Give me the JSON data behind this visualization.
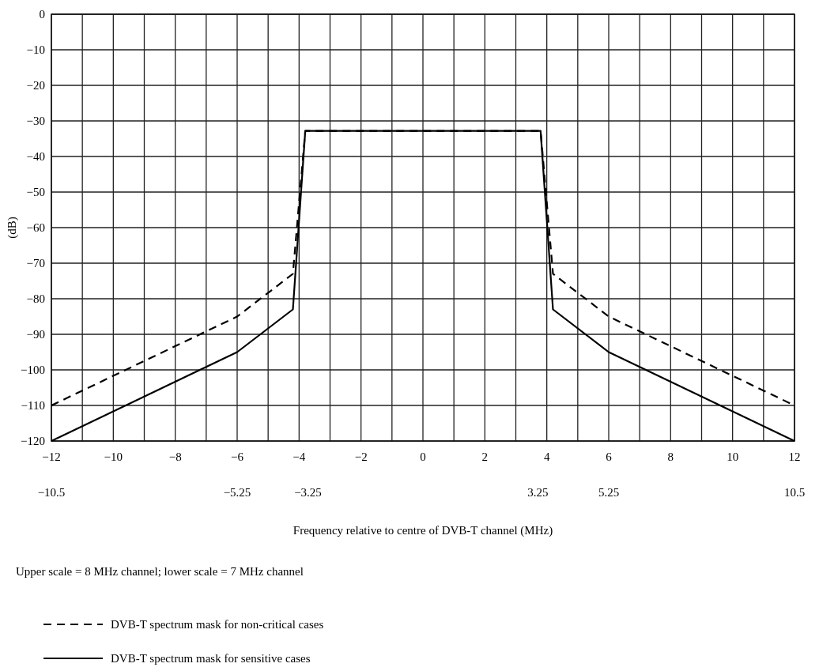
{
  "chart_data": {
    "type": "line",
    "xlabel": "Frequency relative to centre of DVB-T channel (MHz)",
    "ylabel": "(dB)",
    "annotations": [
      "Upper scale = 8 MHz channel; lower scale = 7 MHz channel"
    ],
    "series": [
      {
        "name": "DVB-T spectrum mask for non-critical cases",
        "color": "#000000",
        "line_style": "dashed",
        "x": [
          -12,
          -6,
          -4.2,
          -3.8,
          3.8,
          4.2,
          6,
          12
        ],
        "values": [
          -110,
          -85,
          -73,
          -32.8,
          -32.8,
          -73,
          -85,
          -110
        ]
      },
      {
        "name": "DVB-T spectrum mask for sensitive cases",
        "color": "#000000",
        "line_style": "solid",
        "x": [
          -12,
          -6,
          -4.2,
          -3.8,
          3.8,
          4.2,
          6,
          12
        ],
        "values": [
          -120,
          -95,
          -83,
          -32.8,
          -32.8,
          -83,
          -95,
          -120
        ]
      }
    ],
    "xlim": [
      -12,
      12
    ],
    "xticks": [
      -12,
      {
        "value": -11,
        "label": null
      },
      -10,
      {
        "value": -9,
        "label": null
      },
      -8,
      {
        "value": -7,
        "label": null
      },
      -6,
      {
        "value": -5,
        "label": null
      },
      -4,
      {
        "value": -3,
        "label": null
      },
      -2,
      {
        "value": -1,
        "label": null
      },
      0,
      {
        "value": 1,
        "label": null
      },
      2,
      {
        "value": 3,
        "label": null
      },
      4,
      {
        "value": 5,
        "label": null
      },
      6,
      {
        "value": 7,
        "label": null
      },
      8,
      {
        "value": 9,
        "label": null
      },
      10,
      {
        "value": 11,
        "label": null
      },
      12
    ],
    "x2lim": [
      -10.5,
      10.5
    ],
    "x2ticks": [
      -10.5,
      -5.25,
      -3.25,
      3.25,
      5.25,
      10.5
    ],
    "ylim": [
      -120,
      0
    ],
    "yticks": [
      -120,
      -110,
      -100,
      -90,
      -80,
      -70,
      -60,
      -50,
      -40,
      -30,
      -20,
      -10,
      0
    ],
    "grid": true,
    "legend": "bottom",
    "marker": "none"
  }
}
